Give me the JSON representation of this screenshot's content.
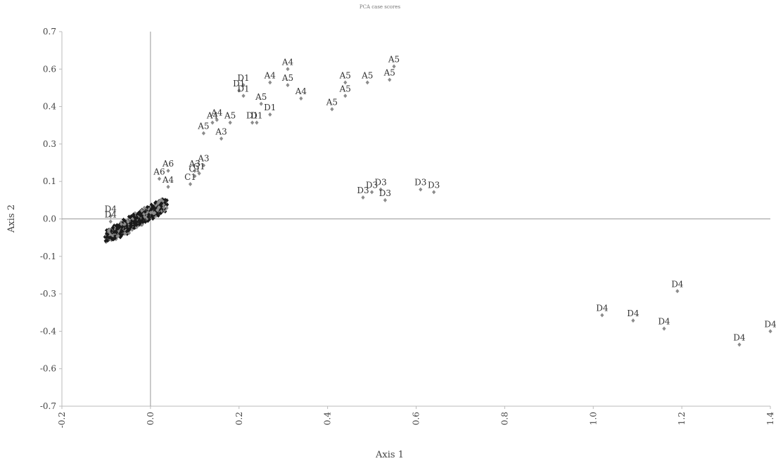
{
  "chart_data": {
    "type": "scatter",
    "title": "PCA case scores",
    "xlabel": "Axis 1",
    "ylabel": "Axis 2",
    "xlim": [
      -0.2,
      1.4
    ],
    "ylim": [
      -0.7,
      0.7
    ],
    "x_ticks": [
      "-0.2",
      "0.0",
      "0.2",
      "0.4",
      "0.6",
      "0.8",
      "1.0",
      "1.2",
      "1.4"
    ],
    "y_ticks": [
      "0.7",
      "0.6",
      "0.4",
      "0.3",
      "0.1",
      "0.0",
      "-0.1",
      "-0.3",
      "-0.4",
      "-0.6",
      "-0.7"
    ],
    "grid": false,
    "marker_color": "#8c8c8c",
    "dense_cluster_color": "#1a1a1a",
    "points": [
      {
        "label": "A4",
        "x": 0.31,
        "y": 0.56
      },
      {
        "label": "A4",
        "x": 0.27,
        "y": 0.51
      },
      {
        "label": "A4",
        "x": 0.34,
        "y": 0.45
      },
      {
        "label": "A5",
        "x": 0.31,
        "y": 0.5
      },
      {
        "label": "A5",
        "x": 0.44,
        "y": 0.51
      },
      {
        "label": "A5",
        "x": 0.49,
        "y": 0.51
      },
      {
        "label": "A5",
        "x": 0.54,
        "y": 0.52
      },
      {
        "label": "A5",
        "x": 0.55,
        "y": 0.57
      },
      {
        "label": "A5",
        "x": 0.44,
        "y": 0.46
      },
      {
        "label": "A5",
        "x": 0.41,
        "y": 0.41
      },
      {
        "label": "A5",
        "x": 0.25,
        "y": 0.43
      },
      {
        "label": "A5",
        "x": 0.18,
        "y": 0.36
      },
      {
        "label": "A5",
        "x": 0.12,
        "y": 0.32
      },
      {
        "label": "D1",
        "x": 0.21,
        "y": 0.5
      },
      {
        "label": "D1",
        "x": 0.2,
        "y": 0.48
      },
      {
        "label": "D1",
        "x": 0.21,
        "y": 0.46
      },
      {
        "label": "D1",
        "x": 0.27,
        "y": 0.39
      },
      {
        "label": "D1",
        "x": 0.24,
        "y": 0.36
      },
      {
        "label": "D1",
        "x": 0.23,
        "y": 0.36
      },
      {
        "label": "A4",
        "x": 0.15,
        "y": 0.37
      },
      {
        "label": "A4",
        "x": 0.14,
        "y": 0.36
      },
      {
        "label": "A3",
        "x": 0.16,
        "y": 0.3
      },
      {
        "label": "A3",
        "x": 0.1,
        "y": 0.18
      },
      {
        "label": "A3",
        "x": 0.12,
        "y": 0.2
      },
      {
        "label": "C1",
        "x": 0.1,
        "y": 0.16
      },
      {
        "label": "C1",
        "x": 0.11,
        "y": 0.17
      },
      {
        "label": "C1",
        "x": 0.09,
        "y": 0.13
      },
      {
        "label": "A6",
        "x": 0.04,
        "y": 0.18
      },
      {
        "label": "A6",
        "x": 0.02,
        "y": 0.15
      },
      {
        "label": "A4",
        "x": 0.04,
        "y": 0.12
      },
      {
        "label": "D3",
        "x": 0.52,
        "y": 0.11
      },
      {
        "label": "D3",
        "x": 0.5,
        "y": 0.1
      },
      {
        "label": "D3",
        "x": 0.48,
        "y": 0.08
      },
      {
        "label": "D3",
        "x": 0.53,
        "y": 0.07
      },
      {
        "label": "D3",
        "x": 0.61,
        "y": 0.11
      },
      {
        "label": "D3",
        "x": 0.64,
        "y": 0.1
      },
      {
        "label": "D4",
        "x": 1.19,
        "y": -0.27
      },
      {
        "label": "D4",
        "x": 1.02,
        "y": -0.36
      },
      {
        "label": "D4",
        "x": 1.09,
        "y": -0.38
      },
      {
        "label": "D4",
        "x": 1.16,
        "y": -0.41
      },
      {
        "label": "D4",
        "x": 1.33,
        "y": -0.47
      },
      {
        "label": "D4",
        "x": 1.4,
        "y": -0.42
      },
      {
        "label": "D4",
        "x": -0.09,
        "y": 0.01
      },
      {
        "label": "D4",
        "x": -0.09,
        "y": -0.01
      }
    ]
  }
}
